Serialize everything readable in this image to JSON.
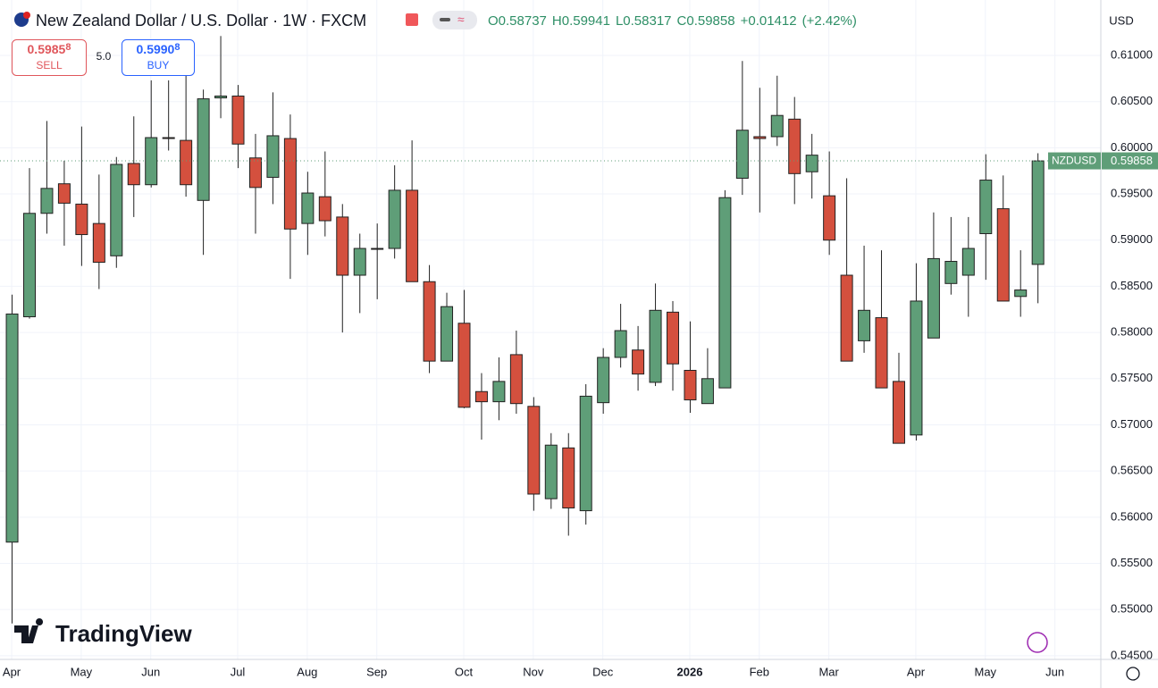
{
  "header": {
    "title": "New Zealand Dollar / U.S. Dollar · 1W · FXCM",
    "ohlc": {
      "values": [
        0.58737,
        0.59941,
        0.58317,
        0.59858
      ],
      "value_labels": [
        "O0.58737",
        "H0.59941",
        "L0.58317",
        "C0.59858"
      ]
    },
    "change": {
      "values": [
        0.01412,
        2.42
      ],
      "value_labels": [
        "+0.01412",
        "(+2.42%)"
      ]
    },
    "sell": {
      "price": "0.5985",
      "pip": "8",
      "label": "SELL"
    },
    "spread": "5.0",
    "buy": {
      "price": "0.5990",
      "pip": "8",
      "label": "BUY"
    },
    "currency": "USD",
    "logo": "TradingView"
  },
  "chart_data": {
    "type": "candlestick",
    "symbol": "NZDUSD",
    "last_price": 0.59858,
    "up_color": "#5f9e78",
    "down_color": "#d4503e",
    "grid": true,
    "ylim": [
      0.5446,
      0.616
    ],
    "yticks": [
      {
        "value": 0.545,
        "label": "0.54500"
      },
      {
        "value": 0.55,
        "label": "0.55000"
      },
      {
        "value": 0.555,
        "label": "0.55500"
      },
      {
        "value": 0.56,
        "label": "0.56000"
      },
      {
        "value": 0.565,
        "label": "0.56500"
      },
      {
        "value": 0.57,
        "label": "0.57000"
      },
      {
        "value": 0.575,
        "label": "0.57500"
      },
      {
        "value": 0.58,
        "label": "0.58000"
      },
      {
        "value": 0.585,
        "label": "0.58500"
      },
      {
        "value": 0.59,
        "label": "0.59000"
      },
      {
        "value": 0.595,
        "label": "0.59500"
      },
      {
        "value": 0.6,
        "label": "0.60000"
      },
      {
        "value": 0.605,
        "label": "0.60500"
      },
      {
        "value": 0.61,
        "label": "0.61000"
      }
    ],
    "xlim": [
      -0.67,
      62.64
    ],
    "xticks": [
      {
        "value": 0,
        "label": "Apr"
      },
      {
        "value": 4,
        "label": "May"
      },
      {
        "value": 8,
        "label": "Jun"
      },
      {
        "value": 13,
        "label": "Jul"
      },
      {
        "value": 17,
        "label": "Aug"
      },
      {
        "value": 21,
        "label": "Sep"
      },
      {
        "value": 26,
        "label": "Oct"
      },
      {
        "value": 30,
        "label": "Nov"
      },
      {
        "value": 34,
        "label": "Dec"
      },
      {
        "value": 39,
        "label": "2026"
      },
      {
        "value": 43,
        "label": "Feb"
      },
      {
        "value": 47,
        "label": "Mar"
      },
      {
        "value": 52,
        "label": "Apr"
      },
      {
        "value": 56,
        "label": "May"
      },
      {
        "value": 60,
        "label": "Jun"
      }
    ],
    "open": [
      0.5573,
      0.5817,
      0.5929,
      0.5961,
      0.5939,
      0.5918,
      0.5883,
      0.5983,
      0.596,
      0.6011,
      0.6008,
      0.5943,
      0.6054,
      0.6056,
      0.5989,
      0.5968,
      0.601,
      0.5918,
      0.5947,
      0.5925,
      0.5862,
      0.5891,
      0.5891,
      0.5954,
      0.5855,
      0.5769,
      0.581,
      0.5736,
      0.5725,
      0.5776,
      0.572,
      0.562,
      0.5675,
      0.5607,
      0.5724,
      0.5773,
      0.5781,
      0.5746,
      0.5822,
      0.5759,
      0.5723,
      0.574,
      0.5967,
      0.6012,
      0.6012,
      0.6031,
      0.5974,
      0.5948,
      0.5862,
      0.5791,
      0.5816,
      0.5747,
      0.5689,
      0.5794,
      0.5853,
      0.5862,
      0.5907,
      0.5934,
      0.5839,
      0.58737
    ],
    "high": [
      0.5841,
      0.5978,
      0.6029,
      0.5986,
      0.6023,
      0.5971,
      0.599,
      0.6034,
      0.6073,
      0.6073,
      0.6078,
      0.6063,
      0.6121,
      0.6068,
      0.6015,
      0.606,
      0.6036,
      0.5974,
      0.5996,
      0.5939,
      0.5907,
      0.5918,
      0.5981,
      0.6008,
      0.5873,
      0.5843,
      0.5846,
      0.5756,
      0.5773,
      0.5802,
      0.573,
      0.5691,
      0.5691,
      0.5744,
      0.5783,
      0.5831,
      0.5807,
      0.5853,
      0.5834,
      0.5812,
      0.5783,
      0.5954,
      0.6094,
      0.6065,
      0.6078,
      0.6055,
      0.6015,
      0.5996,
      0.5967,
      0.5894,
      0.5889,
      0.5778,
      0.5875,
      0.593,
      0.5925,
      0.5925,
      0.5993,
      0.597,
      0.5889,
      0.59941
    ],
    "low": [
      0.5485,
      0.5815,
      0.5907,
      0.5894,
      0.5872,
      0.5847,
      0.587,
      0.5925,
      0.5957,
      0.5997,
      0.5947,
      0.5884,
      0.6032,
      0.5978,
      0.5907,
      0.5939,
      0.5858,
      0.5884,
      0.5904,
      0.58,
      0.5821,
      0.5836,
      0.588,
      0.5855,
      0.5756,
      0.5769,
      0.5718,
      0.5684,
      0.5705,
      0.5712,
      0.5607,
      0.5609,
      0.558,
      0.5592,
      0.5712,
      0.5762,
      0.5737,
      0.5742,
      0.5737,
      0.5713,
      0.5723,
      0.574,
      0.5949,
      0.593,
      0.6002,
      0.5939,
      0.5945,
      0.5884,
      0.5769,
      0.5778,
      0.574,
      0.568,
      0.5683,
      0.5794,
      0.5841,
      0.5817,
      0.5857,
      0.5834,
      0.5817,
      0.58317
    ],
    "close": [
      0.582,
      0.5929,
      0.5956,
      0.594,
      0.5906,
      0.5876,
      0.5982,
      0.596,
      0.6011,
      0.601,
      0.596,
      0.6053,
      0.6056,
      0.6004,
      0.5957,
      0.6013,
      0.5912,
      0.5951,
      0.5921,
      0.5862,
      0.5891,
      0.5891,
      0.5954,
      0.5855,
      0.5769,
      0.5828,
      0.5719,
      0.5725,
      0.5747,
      0.5723,
      0.5625,
      0.5678,
      0.561,
      0.5731,
      0.5773,
      0.5802,
      0.5755,
      0.5824,
      0.5766,
      0.5727,
      0.575,
      0.5946,
      0.6019,
      0.601,
      0.6035,
      0.5972,
      0.5992,
      0.59,
      0.5769,
      0.5824,
      0.574,
      0.568,
      0.5834,
      0.588,
      0.5877,
      0.5891,
      0.5965,
      0.5834,
      0.5846,
      0.59858
    ]
  }
}
